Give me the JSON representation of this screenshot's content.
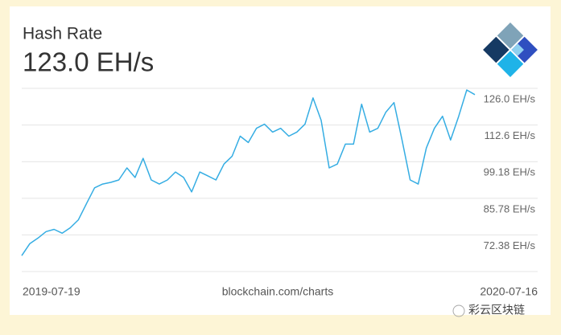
{
  "chart_data": {
    "type": "line",
    "title": "Hash Rate",
    "subtitle": "123.0 EH/s",
    "source": "blockchain.com/charts",
    "watermark": "彩云区块链",
    "categories": [
      "2019-07-19",
      null,
      null,
      null,
      null,
      null,
      null,
      null,
      null,
      null,
      null,
      null,
      null,
      null,
      null,
      null,
      null,
      null,
      null,
      null,
      null,
      null,
      null,
      null,
      null,
      null,
      null,
      null,
      null,
      null,
      null,
      null,
      null,
      null,
      null,
      null,
      null,
      null,
      null,
      null,
      null,
      null,
      null,
      null,
      null,
      null,
      null,
      null,
      null,
      null,
      null,
      null,
      null,
      null,
      null,
      null,
      "2020-07-16"
    ],
    "series": [
      {
        "color": "#35ade3",
        "values": [
          64.8,
          69.2,
          71.2,
          73.6,
          74.4,
          73.0,
          75.0,
          77.9,
          83.8,
          89.6,
          91.0,
          91.6,
          92.5,
          96.9,
          93.4,
          100.4,
          92.5,
          91.0,
          92.5,
          95.4,
          93.4,
          88.1,
          95.4,
          94.0,
          92.5,
          98.3,
          101.2,
          108.5,
          106.2,
          111.4,
          112.9,
          110.0,
          111.4,
          108.5,
          110.0,
          112.9,
          122.5,
          114.3,
          96.9,
          98.3,
          105.6,
          105.6,
          120.2,
          110.0,
          111.4,
          117.3,
          120.8,
          107.1,
          92.5,
          91.0,
          104.2,
          111.4,
          115.8,
          107.1,
          115.8,
          125.4,
          123.7
        ]
      }
    ],
    "ylim": [
      58.98,
      126.0
    ],
    "yticks": [
      {
        "value": 126.0,
        "label": "126.0 EH/s"
      },
      {
        "value": 112.6,
        "label": "112.6 EH/s"
      },
      {
        "value": 99.18,
        "label": "99.18 EH/s"
      },
      {
        "value": 85.78,
        "label": "85.78 EH/s"
      },
      {
        "value": 72.38,
        "label": "72.38 EH/s"
      }
    ],
    "grid": true
  }
}
